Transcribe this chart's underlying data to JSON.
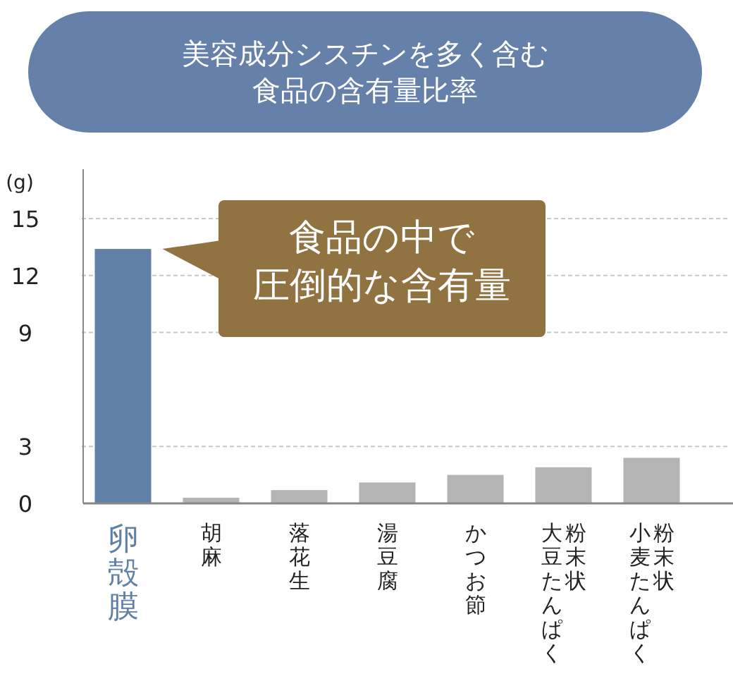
{
  "chart_data": {
    "type": "bar",
    "title": "美容成分シスチンを多く含む食品の含有量比率",
    "ylabel": "(g)",
    "categories": [
      "卵殻膜",
      "胡麻",
      "落花生",
      "湯豆腐",
      "かつお節",
      "粉末状大豆たんぱく",
      "粉末状小麦たんぱく"
    ],
    "values": [
      13.4,
      0.3,
      0.7,
      1.1,
      1.5,
      1.9,
      2.4
    ],
    "colors": [
      "#6180a8",
      "#b4b4b4",
      "#b4b4b4",
      "#b4b4b4",
      "#b4b4b4",
      "#b4b4b4",
      "#b4b4b4"
    ],
    "ylim": [
      0,
      15
    ],
    "yticks": [
      0,
      3,
      9,
      12,
      15
    ],
    "grid": "y",
    "annotations": [
      "食品の中で圧倒的な含有量"
    ]
  }
}
